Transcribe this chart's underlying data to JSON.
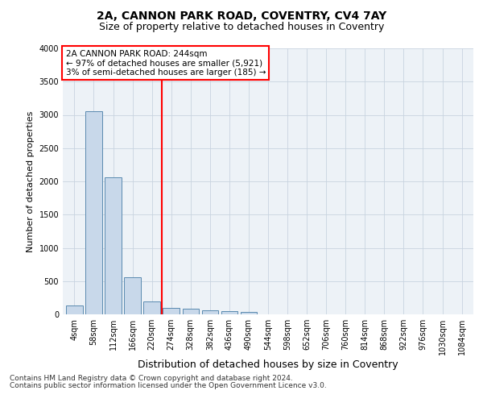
{
  "title": "2A, CANNON PARK ROAD, COVENTRY, CV4 7AY",
  "subtitle": "Size of property relative to detached houses in Coventry",
  "xlabel": "Distribution of detached houses by size in Coventry",
  "ylabel": "Number of detached properties",
  "annotation_line1": "2A CANNON PARK ROAD: 244sqm",
  "annotation_line2": "← 97% of detached houses are smaller (5,921)",
  "annotation_line3": "3% of semi-detached houses are larger (185) →",
  "footer1": "Contains HM Land Registry data © Crown copyright and database right 2024.",
  "footer2": "Contains public sector information licensed under the Open Government Licence v3.0.",
  "bar_color": "#c8d8ea",
  "bar_edge_color": "#5a8ab0",
  "ylim": [
    0,
    4000
  ],
  "yticks": [
    0,
    500,
    1000,
    1500,
    2000,
    2500,
    3000,
    3500,
    4000
  ],
  "categories": [
    "4sqm",
    "58sqm",
    "112sqm",
    "166sqm",
    "220sqm",
    "274sqm",
    "328sqm",
    "382sqm",
    "436sqm",
    "490sqm",
    "544sqm",
    "598sqm",
    "652sqm",
    "706sqm",
    "760sqm",
    "814sqm",
    "868sqm",
    "922sqm",
    "976sqm",
    "1030sqm",
    "1084sqm"
  ],
  "values": [
    130,
    3050,
    2060,
    560,
    200,
    100,
    80,
    62,
    48,
    38,
    5,
    2,
    1,
    1,
    0,
    0,
    0,
    0,
    0,
    0,
    0
  ],
  "red_line_index": 4.5,
  "background_color": "#edf2f7",
  "grid_color": "#c8d4e0",
  "title_fontsize": 10,
  "subtitle_fontsize": 9,
  "ylabel_fontsize": 8,
  "xlabel_fontsize": 9,
  "tick_fontsize": 7,
  "footer_fontsize": 6.5,
  "ann_fontsize": 7.5
}
